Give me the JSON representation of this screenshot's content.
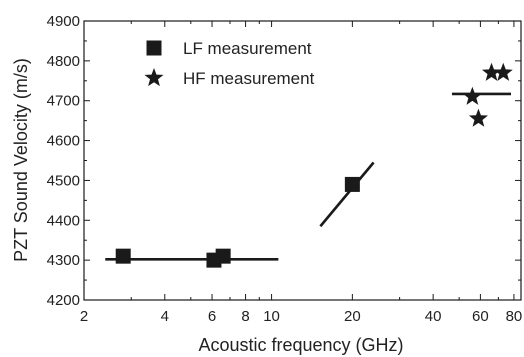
{
  "chart_data": {
    "type": "scatter",
    "title": "",
    "xlabel": "Acoustic frequency (GHz)",
    "ylabel": "PZT Sound Velocity (m/s)",
    "x_scale": "log",
    "xlim": [
      2,
      85
    ],
    "ylim": [
      4200,
      4900
    ],
    "x_ticks": [
      2,
      4,
      6,
      8,
      10,
      20,
      40,
      60,
      80
    ],
    "x_tick_labels": [
      "2",
      "4",
      "6",
      "8",
      "10",
      "20",
      "40",
      "60",
      "80"
    ],
    "y_ticks": [
      4200,
      4300,
      4400,
      4500,
      4600,
      4700,
      4800,
      4900
    ],
    "y_tick_labels": [
      "4200",
      "4300",
      "4400",
      "4500",
      "4600",
      "4700",
      "4800",
      "4900"
    ],
    "legend_position": "top-left",
    "grid": false,
    "series": [
      {
        "name": "LF measurement",
        "marker": "square",
        "color": "#1a1a1a",
        "points": [
          {
            "x": 2.8,
            "y": 4310
          },
          {
            "x": 6.1,
            "y": 4300
          },
          {
            "x": 6.6,
            "y": 4310
          },
          {
            "x": 20,
            "y": 4490
          }
        ]
      },
      {
        "name": "HF measurement",
        "marker": "star",
        "color": "#1a1a1a",
        "points": [
          {
            "x": 56,
            "y": 4710
          },
          {
            "x": 59,
            "y": 4655
          },
          {
            "x": 66,
            "y": 4770
          },
          {
            "x": 73,
            "y": 4770
          }
        ]
      }
    ],
    "lines": [
      {
        "points": [
          {
            "x": 2.4,
            "y": 4302
          },
          {
            "x": 10.6,
            "y": 4302
          }
        ]
      },
      {
        "points": [
          {
            "x": 15.2,
            "y": 4385
          },
          {
            "x": 24,
            "y": 4545
          }
        ]
      },
      {
        "points": [
          {
            "x": 47,
            "y": 4717
          },
          {
            "x": 78,
            "y": 4717
          }
        ]
      }
    ]
  }
}
